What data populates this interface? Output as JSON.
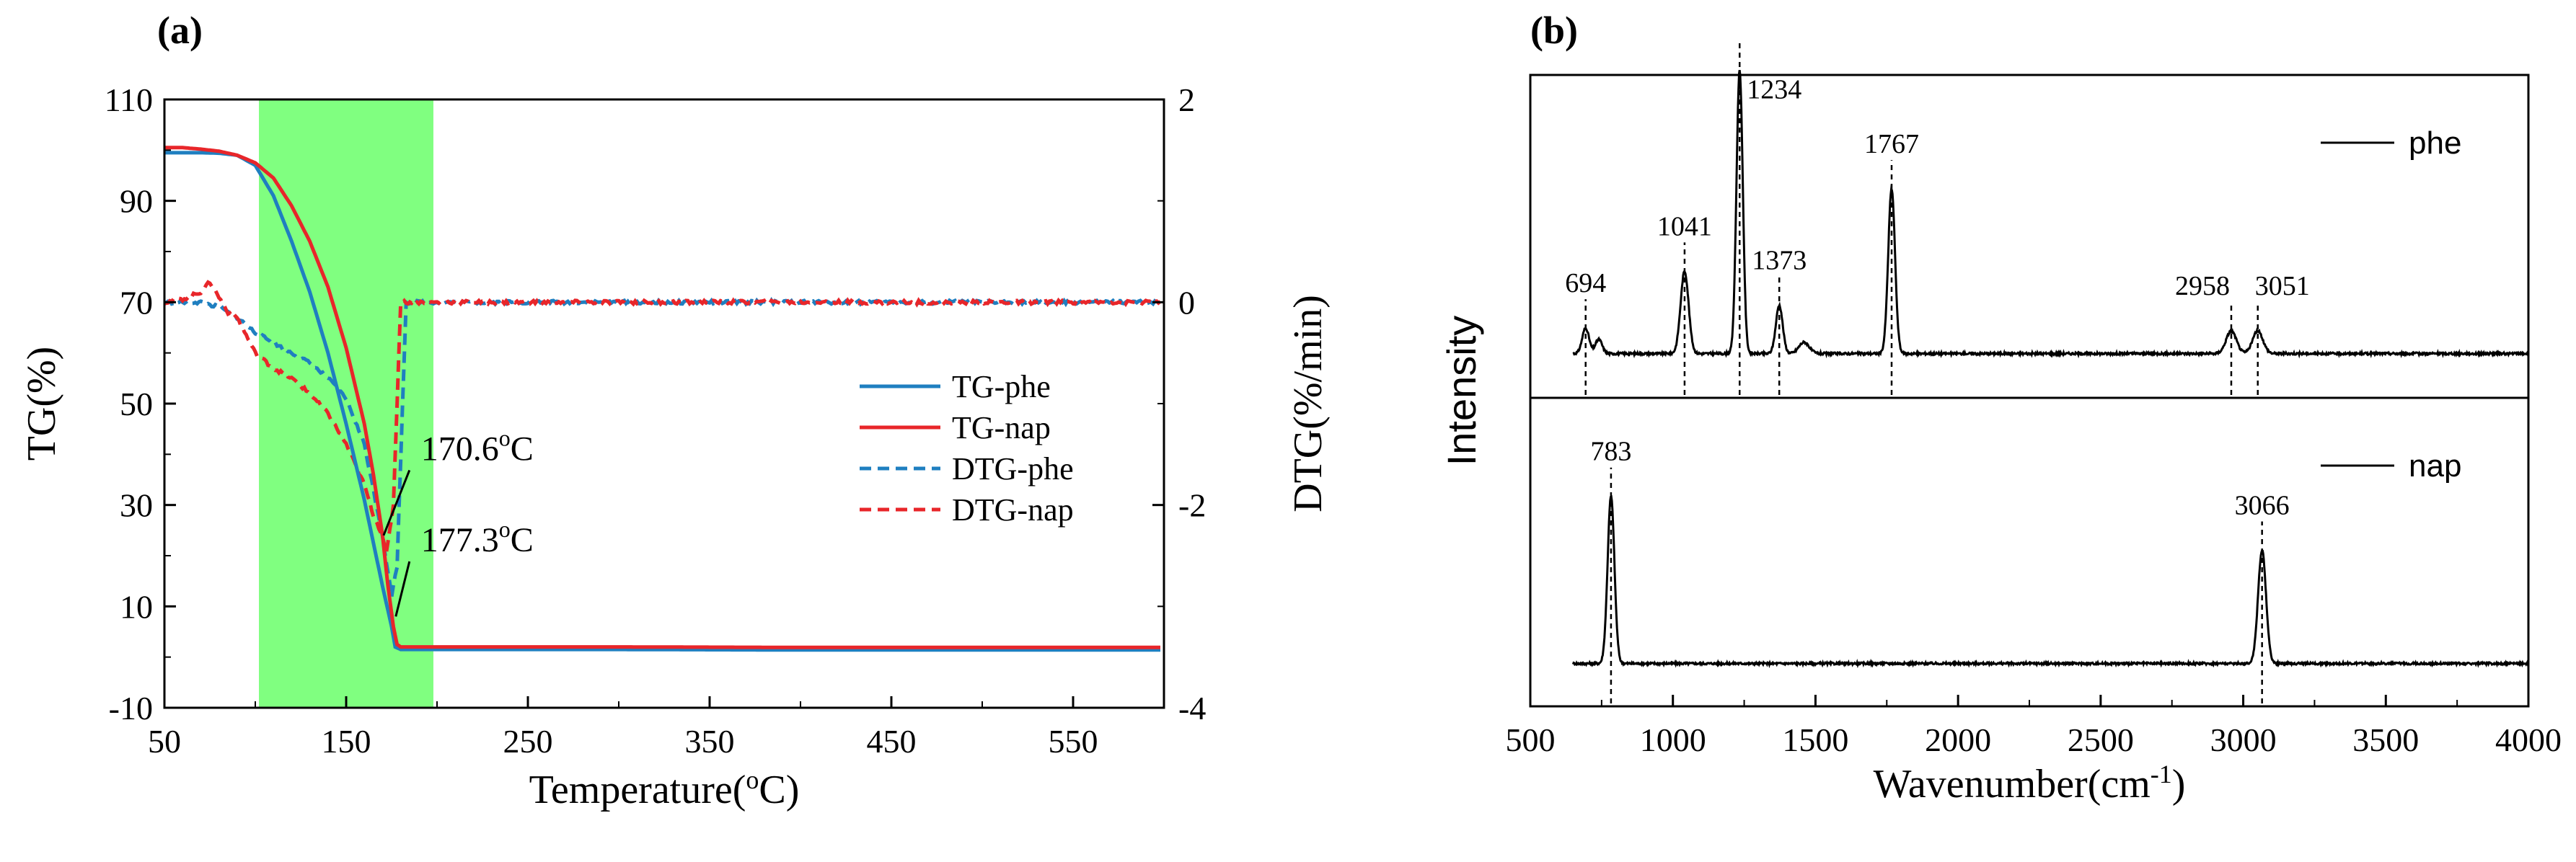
{
  "panel_labels": {
    "a": "(a)",
    "b": "(b)"
  },
  "colors": {
    "tg_phe": "#1f7fc0",
    "tg_nap": "#e8262a",
    "dtg_phe": "#1f7fc0",
    "dtg_nap": "#e8262a",
    "highlight": "#80ff80",
    "raman": "#000000"
  },
  "chart_data": [
    {
      "id": "a",
      "type": "line",
      "xlabel_text": "Temperature(",
      "xlabel_sup": "o",
      "xlabel_end": "C)",
      "ylabel": "TG(%)",
      "y2label": "DTG(%/min)",
      "xlim": [
        50,
        600
      ],
      "ylim": [
        -10,
        110
      ],
      "y2lim": [
        -4,
        2
      ],
      "xticks": [
        50,
        150,
        250,
        350,
        450,
        550
      ],
      "yticks": [
        -10,
        10,
        30,
        50,
        70,
        90,
        110
      ],
      "y2ticks": [
        -4,
        -2,
        0,
        2
      ],
      "highlight_range": [
        102,
        198
      ],
      "legend_position": "center-right",
      "series": [
        {
          "name": "TG-phe",
          "axis": "left",
          "style": "solid",
          "x": [
            50,
            70,
            80,
            90,
            100,
            110,
            120,
            130,
            140,
            150,
            160,
            170,
            175,
            177,
            180,
            200,
            300,
            400,
            500,
            598
          ],
          "y": [
            99.5,
            99.5,
            99.4,
            99,
            97,
            91,
            82,
            72,
            60,
            46,
            31,
            14,
            6,
            2,
            1.5,
            1.5,
            1.5,
            1.4,
            1.4,
            1.4
          ]
        },
        {
          "name": "TG-nap",
          "axis": "left",
          "style": "solid",
          "x": [
            50,
            60,
            70,
            80,
            90,
            100,
            110,
            120,
            130,
            140,
            150,
            160,
            165,
            170,
            173,
            176,
            178,
            180,
            200,
            300,
            400,
            500,
            598
          ],
          "y": [
            100.5,
            100.5,
            100.2,
            99.8,
            99,
            97.5,
            94.5,
            89,
            82,
            73,
            61,
            46,
            36,
            24,
            14,
            6,
            2.5,
            2,
            2,
            2,
            1.9,
            1.9,
            1.9
          ]
        },
        {
          "name": "DTG-phe",
          "axis": "right",
          "style": "dashed",
          "x": [
            50,
            60,
            70,
            80,
            90,
            100,
            110,
            120,
            130,
            140,
            150,
            160,
            165,
            170,
            175,
            178,
            183,
            190,
            250,
            350,
            450,
            550,
            598
          ],
          "y": [
            0,
            0,
            0,
            -0.05,
            -0.15,
            -0.3,
            -0.4,
            -0.5,
            -0.6,
            -0.75,
            -0.95,
            -1.4,
            -1.85,
            -2.3,
            -2.9,
            -2.6,
            0,
            0,
            0,
            0,
            0,
            0,
            0
          ]
        },
        {
          "name": "DTG-nap",
          "axis": "right",
          "style": "dashed",
          "x": [
            50,
            60,
            70,
            75,
            80,
            85,
            90,
            100,
            110,
            120,
            130,
            140,
            150,
            160,
            165,
            170,
            172,
            176,
            178,
            180,
            190,
            250,
            350,
            450,
            550,
            598
          ],
          "y": [
            0,
            0.03,
            0.1,
            0.2,
            0.05,
            -0.1,
            -0.15,
            -0.5,
            -0.65,
            -0.75,
            -0.9,
            -1.1,
            -1.4,
            -1.8,
            -2.1,
            -2.3,
            -2.5,
            -2.0,
            -1.0,
            0,
            0,
            0,
            0,
            0,
            0,
            0
          ]
        }
      ],
      "annotations": [
        {
          "value": "170.6",
          "sup": "o",
          "unit": "C",
          "text_x": 188,
          "text_y_dtg": -1.6,
          "arrow_to_x": 170.6,
          "arrow_to_y_dtg": -2.3
        },
        {
          "value": "177.3",
          "sup": "o",
          "unit": "C",
          "text_x": 188,
          "text_y_dtg": -2.5,
          "arrow_to_x": 177.3,
          "arrow_to_y_dtg": -3.1
        }
      ]
    },
    {
      "id": "b",
      "type": "line",
      "xlabel_text": "Wavenumber(cm",
      "xlabel_sup": "-1",
      "xlabel_end": ")",
      "ylabel": "Intensity",
      "xlim": [
        500,
        4000
      ],
      "xticks": [
        500,
        1000,
        1500,
        2000,
        2500,
        3000,
        3500,
        4000
      ],
      "baseline_start": 650,
      "panels": [
        {
          "name": "phe",
          "baseline": 0.1,
          "noise_amp": 0.004,
          "peaks": [
            {
              "pos": 694,
              "label": "694",
              "height": 0.09,
              "width": 12
            },
            {
              "pos": 740,
              "label": "",
              "height": 0.05,
              "width": 12
            },
            {
              "pos": 1041,
              "label": "1041",
              "height": 0.29,
              "width": 14
            },
            {
              "pos": 1234,
              "label": "1234",
              "height": 1.0,
              "width": 11
            },
            {
              "pos": 1373,
              "label": "1373",
              "height": 0.17,
              "width": 12
            },
            {
              "pos": 1460,
              "label": "",
              "height": 0.04,
              "width": 18
            },
            {
              "pos": 1767,
              "label": "1767",
              "height": 0.58,
              "width": 12
            },
            {
              "pos": 2958,
              "label": "2958",
              "height": 0.08,
              "width": 18
            },
            {
              "pos": 3051,
              "label": "3051",
              "height": 0.08,
              "width": 18
            }
          ]
        },
        {
          "name": "nap",
          "baseline": 0.1,
          "noise_amp": 0.004,
          "peaks": [
            {
              "pos": 783,
              "label": "783",
              "height": 0.62,
              "width": 12
            },
            {
              "pos": 3066,
              "label": "3066",
              "height": 0.42,
              "width": 14
            }
          ]
        }
      ]
    }
  ]
}
